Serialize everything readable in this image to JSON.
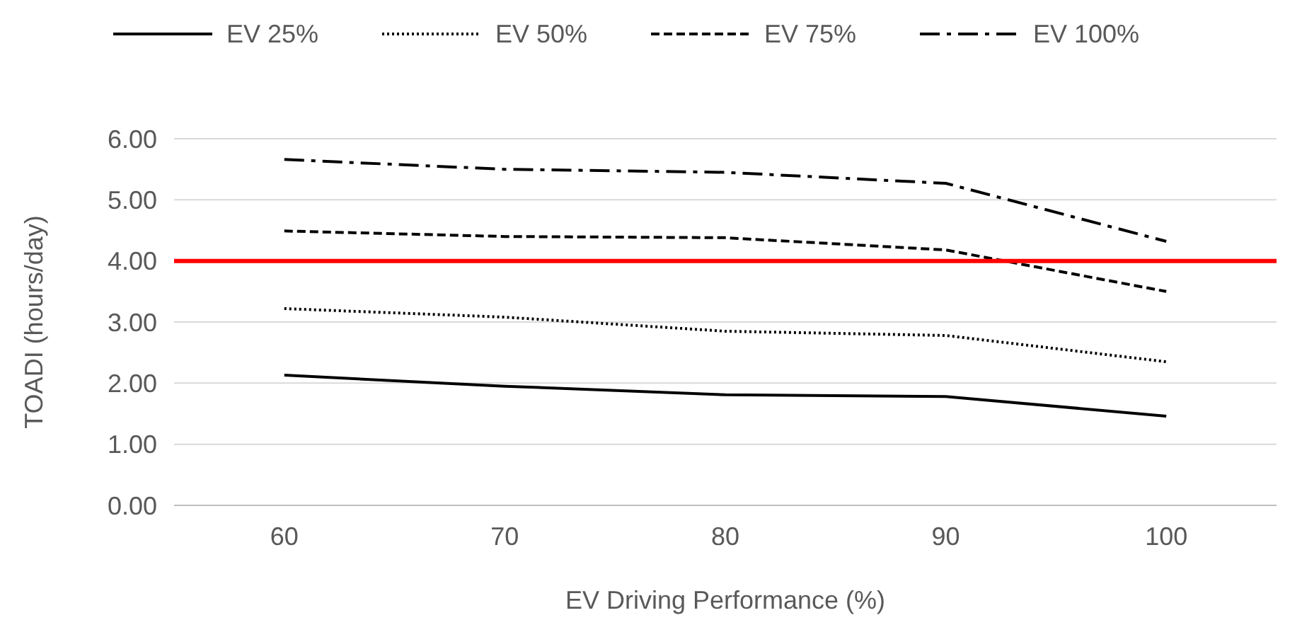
{
  "chart_data": {
    "type": "line",
    "xlabel": "EV Driving Performance (%)",
    "ylabel": "TOADI (hours/day)",
    "x": [
      60,
      70,
      80,
      90,
      100
    ],
    "series": [
      {
        "name": "EV 25%",
        "color": "#000000",
        "line_style": "solid",
        "values": [
          2.13,
          1.95,
          1.81,
          1.78,
          1.46
        ]
      },
      {
        "name": "EV 50%",
        "color": "#000000",
        "line_style": "dotted",
        "values": [
          3.22,
          3.08,
          2.85,
          2.78,
          2.35
        ]
      },
      {
        "name": "EV 75%",
        "color": "#000000",
        "line_style": "dashed",
        "values": [
          4.49,
          4.4,
          4.38,
          4.18,
          3.5
        ]
      },
      {
        "name": "EV 100%",
        "color": "#000000",
        "line_style": "dashdot",
        "values": [
          5.66,
          5.5,
          5.45,
          5.27,
          4.32
        ]
      }
    ],
    "xlim": [
      55,
      105
    ],
    "xticks": [
      60,
      70,
      80,
      90,
      100
    ],
    "ylim": [
      0,
      6
    ],
    "yticks": [
      {
        "value": 0,
        "label": "0.00"
      },
      {
        "value": 1,
        "label": "1.00"
      },
      {
        "value": 2,
        "label": "2.00"
      },
      {
        "value": 3,
        "label": "3.00"
      },
      {
        "value": 4,
        "label": "4.00"
      },
      {
        "value": 5,
        "label": "5.00"
      },
      {
        "value": 6,
        "label": "6.00"
      }
    ],
    "ref_lines": [
      {
        "axis": "y",
        "value": 4,
        "color": "#ff0000"
      }
    ],
    "grid": "y",
    "legend": "top",
    "marker": "none"
  }
}
